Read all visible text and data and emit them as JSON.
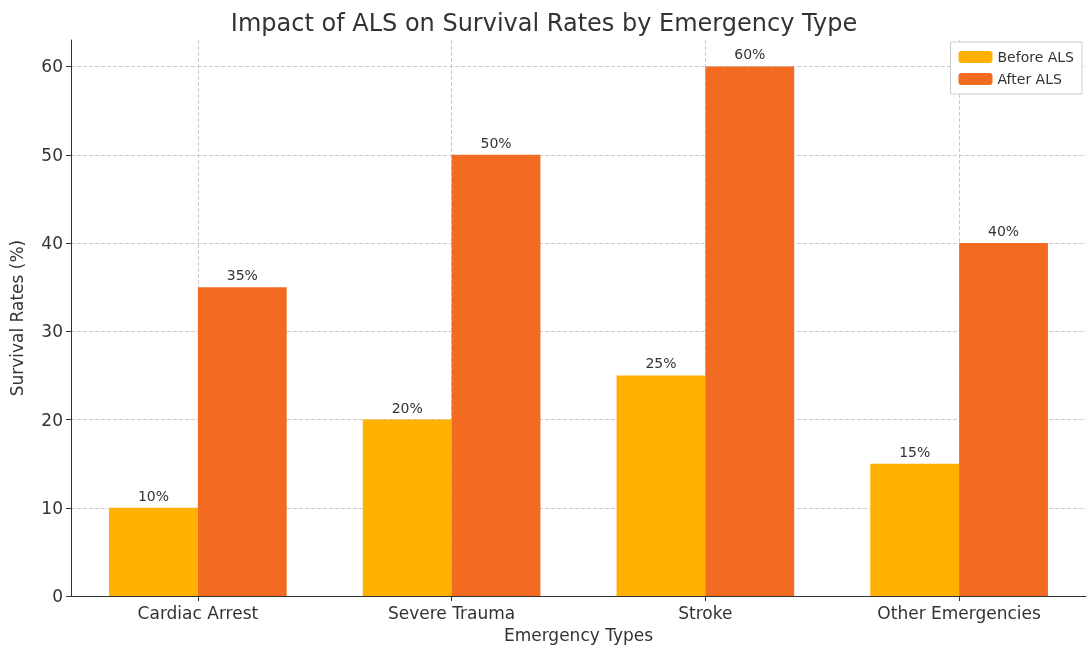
{
  "chart_data": {
    "type": "bar",
    "title": "Impact of ALS on Survival Rates by Emergency Type",
    "xlabel": "Emergency Types",
    "ylabel": "Survival Rates (%)",
    "categories": [
      "Cardiac Arrest",
      "Severe Trauma",
      "Stroke",
      "Other Emergencies"
    ],
    "series": [
      {
        "name": "Before ALS",
        "color": "#ffb000",
        "values": [
          10,
          20,
          25,
          15
        ],
        "value_labels": [
          "10%",
          "20%",
          "25%",
          "15%"
        ]
      },
      {
        "name": "After ALS",
        "color": "#f26b21",
        "values": [
          35,
          50,
          60,
          40
        ],
        "value_labels": [
          "35%",
          "50%",
          "60%",
          "40%"
        ]
      }
    ],
    "ylim": [
      0,
      63
    ],
    "yticks": [
      0,
      10,
      20,
      30,
      40,
      50,
      60
    ],
    "grid": true,
    "legend": "top right"
  }
}
